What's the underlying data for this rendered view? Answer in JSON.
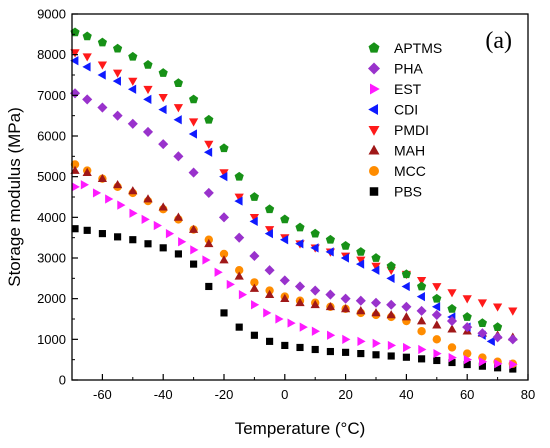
{
  "chart_data": {
    "type": "scatter",
    "panel_label": "(a)",
    "xlabel": "Temperature (°C)",
    "ylabel": "Storage modulus (MPa)",
    "xlim": [
      -70,
      80
    ],
    "ylim": [
      0,
      9000
    ],
    "xticks": [
      -60,
      -40,
      -20,
      0,
      20,
      40,
      60,
      80
    ],
    "yticks": [
      0,
      1000,
      2000,
      3000,
      4000,
      5000,
      6000,
      7000,
      8000,
      9000
    ],
    "grid": false,
    "legend_position": "top-right",
    "series": [
      {
        "name": "APTMS",
        "color": "#179117",
        "marker": "pentagon",
        "x": [
          -69,
          -65,
          -60,
          -55,
          -50,
          -45,
          -40,
          -35,
          -30,
          -25,
          -20,
          -15,
          -10,
          -5,
          0,
          5,
          10,
          15,
          20,
          25,
          30,
          35,
          40,
          45,
          50,
          55,
          60,
          65,
          70
        ],
        "y": [
          8550,
          8450,
          8300,
          8150,
          7950,
          7750,
          7550,
          7300,
          6900,
          6400,
          5700,
          5000,
          4500,
          4200,
          3950,
          3750,
          3600,
          3450,
          3300,
          3150,
          3000,
          2800,
          2600,
          2300,
          2000,
          1750,
          1550,
          1400,
          1300
        ]
      },
      {
        "name": "PHA",
        "color": "#9932cc",
        "marker": "diamond",
        "x": [
          -69,
          -65,
          -60,
          -55,
          -50,
          -45,
          -40,
          -35,
          -30,
          -25,
          -20,
          -15,
          -10,
          -5,
          0,
          5,
          10,
          15,
          20,
          25,
          30,
          35,
          40,
          45,
          50,
          55,
          60,
          65,
          70,
          75
        ],
        "y": [
          7050,
          6900,
          6700,
          6500,
          6300,
          6100,
          5800,
          5500,
          5100,
          4600,
          4000,
          3500,
          3050,
          2700,
          2450,
          2300,
          2200,
          2100,
          2000,
          1950,
          1900,
          1850,
          1800,
          1700,
          1600,
          1450,
          1300,
          1150,
          1050,
          1000
        ]
      },
      {
        "name": "EST",
        "color": "#ff1aff",
        "marker": "triangle-right",
        "x": [
          -69,
          -66,
          -62,
          -58,
          -54,
          -50,
          -46,
          -42,
          -38,
          -34,
          -30,
          -26,
          -22,
          -18,
          -14,
          -10,
          -6,
          -2,
          2,
          6,
          10,
          15,
          20,
          25,
          30,
          35,
          40,
          45,
          50,
          55,
          60,
          65,
          70,
          75
        ],
        "y": [
          4750,
          4800,
          4600,
          4450,
          4300,
          4100,
          3950,
          3800,
          3600,
          3400,
          3200,
          2950,
          2650,
          2350,
          2100,
          1850,
          1650,
          1500,
          1400,
          1300,
          1200,
          1100,
          1000,
          950,
          900,
          850,
          800,
          750,
          650,
          550,
          500,
          450,
          400,
          380
        ]
      },
      {
        "name": "CDI",
        "color": "#0f1aff",
        "marker": "triangle-left",
        "x": [
          -69,
          -65,
          -60,
          -55,
          -50,
          -45,
          -40,
          -35,
          -30,
          -25,
          -20,
          -15,
          -10,
          -5,
          0,
          5,
          10,
          15,
          20,
          25,
          30,
          35,
          40,
          45,
          50,
          55,
          60,
          65,
          68
        ],
        "y": [
          7850,
          7700,
          7500,
          7350,
          7150,
          6900,
          6650,
          6400,
          6050,
          5600,
          5000,
          4400,
          3900,
          3600,
          3450,
          3350,
          3250,
          3150,
          3000,
          2850,
          2700,
          2500,
          2300,
          2050,
          1800,
          1550,
          1300,
          1100,
          950
        ]
      },
      {
        "name": "PMDI",
        "color": "#ff1a1a",
        "marker": "triangle-down",
        "x": [
          -69,
          -65,
          -60,
          -55,
          -50,
          -45,
          -40,
          -35,
          -30,
          -25,
          -20,
          -15,
          -10,
          -5,
          0,
          5,
          10,
          15,
          20,
          25,
          30,
          35,
          40,
          45,
          50,
          55,
          60,
          65,
          70,
          75
        ],
        "y": [
          8050,
          7950,
          7750,
          7550,
          7350,
          7150,
          6950,
          6700,
          6350,
          5800,
          5100,
          4500,
          4000,
          3700,
          3500,
          3350,
          3250,
          3150,
          3050,
          2950,
          2800,
          2700,
          2600,
          2450,
          2300,
          2150,
          2000,
          1900,
          1800,
          1700
        ]
      },
      {
        "name": "MAH",
        "color": "#a01818",
        "marker": "triangle-up",
        "x": [
          -69,
          -65,
          -60,
          -55,
          -50,
          -45,
          -40,
          -35,
          -30,
          -25,
          -20,
          -15,
          -10,
          -5,
          0,
          5,
          10,
          15,
          20,
          25,
          30,
          35,
          40,
          45,
          50,
          55,
          60,
          65,
          70,
          75
        ],
        "y": [
          5150,
          5100,
          4950,
          4800,
          4650,
          4450,
          4250,
          4000,
          3700,
          3350,
          2950,
          2550,
          2250,
          2100,
          2000,
          1900,
          1850,
          1800,
          1750,
          1700,
          1650,
          1600,
          1550,
          1450,
          1350,
          1250,
          1200,
          1150,
          1100,
          1050
        ]
      },
      {
        "name": "MCC",
        "color": "#ff8c00",
        "marker": "circle",
        "x": [
          -69,
          -65,
          -60,
          -55,
          -50,
          -45,
          -40,
          -35,
          -30,
          -25,
          -20,
          -15,
          -10,
          -5,
          0,
          5,
          10,
          15,
          20,
          25,
          30,
          35,
          40,
          45,
          50,
          55,
          60,
          65,
          70,
          75
        ],
        "y": [
          5300,
          5150,
          4950,
          4750,
          4600,
          4400,
          4200,
          3950,
          3700,
          3450,
          3100,
          2700,
          2400,
          2200,
          2050,
          1950,
          1900,
          1800,
          1750,
          1650,
          1600,
          1550,
          1450,
          1200,
          1000,
          800,
          650,
          550,
          450,
          400
        ]
      },
      {
        "name": "PBS",
        "color": "#000000",
        "marker": "square",
        "x": [
          -69,
          -65,
          -60,
          -55,
          -50,
          -45,
          -40,
          -35,
          -30,
          -25,
          -20,
          -15,
          -10,
          -5,
          0,
          5,
          10,
          15,
          20,
          25,
          30,
          35,
          40,
          45,
          50,
          55,
          60,
          65,
          70,
          75
        ],
        "y": [
          3720,
          3680,
          3600,
          3520,
          3450,
          3350,
          3250,
          3100,
          2850,
          2300,
          1650,
          1300,
          1100,
          950,
          850,
          800,
          750,
          700,
          680,
          650,
          620,
          590,
          560,
          520,
          480,
          430,
          380,
          340,
          300,
          270
        ]
      }
    ]
  }
}
